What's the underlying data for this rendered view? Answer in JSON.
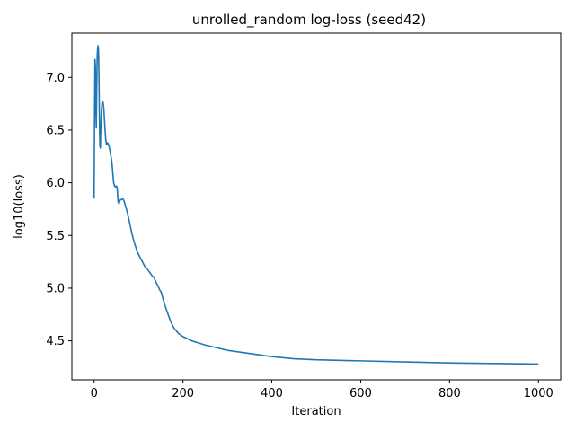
{
  "chart_data": {
    "type": "line",
    "title": "unrolled_random log-loss (seed42)",
    "xlabel": "Iteration",
    "ylabel": "log10(loss)",
    "xlim": [
      -50,
      1050
    ],
    "ylim": [
      4.13,
      7.42
    ],
    "xticks": [
      0,
      200,
      400,
      600,
      800,
      1000
    ],
    "xtick_labels": [
      "0",
      "200",
      "400",
      "600",
      "800",
      "1000"
    ],
    "yticks": [
      4.5,
      5.0,
      5.5,
      6.0,
      6.5,
      7.0
    ],
    "ytick_labels": [
      "4.5",
      "5.0",
      "5.5",
      "6.0",
      "6.5",
      "7.0"
    ],
    "grid": false,
    "legend": "none",
    "line_color": "#1f77b4",
    "series": [
      {
        "x": [
          0,
          1,
          2,
          3,
          4,
          5,
          6,
          7,
          8,
          9,
          10,
          11,
          12,
          13,
          14,
          15,
          16,
          17,
          18,
          20,
          22,
          24,
          26,
          28,
          30,
          32,
          34,
          36,
          38,
          40,
          42,
          44,
          46,
          48,
          50,
          52,
          54,
          56,
          58,
          60,
          62,
          64,
          66,
          68,
          70,
          72,
          74,
          76,
          78,
          80,
          82,
          85,
          88,
          90,
          93,
          96,
          100,
          105,
          110,
          115,
          120,
          125,
          130,
          135,
          140,
          145,
          148,
          150,
          152,
          155,
          160,
          165,
          170,
          175,
          180,
          190,
          200,
          220,
          250,
          300,
          350,
          400,
          450,
          500,
          600,
          700,
          800,
          900,
          1000
        ],
        "y": [
          5.85,
          6.6,
          7.17,
          7.1,
          6.7,
          6.52,
          6.9,
          7.2,
          7.28,
          7.3,
          7.25,
          7.0,
          6.6,
          6.35,
          6.33,
          6.5,
          6.65,
          6.72,
          6.76,
          6.77,
          6.7,
          6.55,
          6.42,
          6.36,
          6.38,
          6.37,
          6.34,
          6.3,
          6.25,
          6.2,
          6.1,
          6.0,
          5.97,
          5.96,
          5.97,
          5.95,
          5.82,
          5.8,
          5.83,
          5.84,
          5.84,
          5.85,
          5.84,
          5.82,
          5.79,
          5.76,
          5.73,
          5.7,
          5.66,
          5.62,
          5.58,
          5.52,
          5.47,
          5.44,
          5.4,
          5.36,
          5.32,
          5.28,
          5.24,
          5.2,
          5.18,
          5.15,
          5.12,
          5.1,
          5.05,
          5.01,
          4.98,
          4.97,
          4.95,
          4.9,
          4.83,
          4.77,
          4.71,
          4.66,
          4.62,
          4.57,
          4.54,
          4.5,
          4.46,
          4.41,
          4.38,
          4.35,
          4.33,
          4.32,
          4.31,
          4.3,
          4.29,
          4.285,
          4.28
        ]
      }
    ]
  }
}
